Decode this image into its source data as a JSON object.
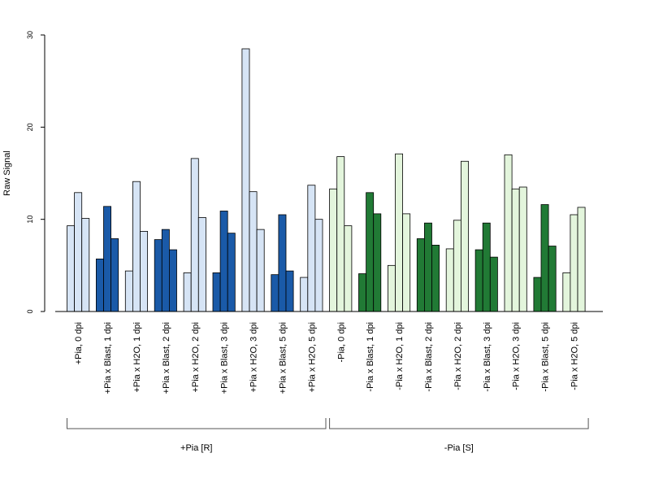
{
  "chart_data": {
    "type": "bar",
    "ylabel": "Raw Signal",
    "xlabel": "",
    "ylim": [
      0,
      30
    ],
    "yticks": [
      0,
      10,
      20,
      30
    ],
    "grid": false,
    "legend": "none",
    "colors": {
      "plus_light": "#d6e4f5",
      "plus_dark": "#1a5aa8",
      "minus_light": "#e3f5dc",
      "minus_dark": "#217a35",
      "stroke": "#000000"
    },
    "categories": [
      {
        "label": "+Pia, 0 dpi",
        "values": [
          9.3,
          12.9,
          10.1
        ],
        "fill": "plus_light"
      },
      {
        "label": "+Pia x Blast, 1 dpi",
        "values": [
          5.7,
          11.4,
          7.9
        ],
        "fill": "plus_dark"
      },
      {
        "label": "+Pia x H2O, 1 dpi",
        "values": [
          4.4,
          14.1,
          8.7
        ],
        "fill": "plus_light"
      },
      {
        "label": "+Pia x Blast, 2 dpi",
        "values": [
          7.8,
          8.9,
          6.7
        ],
        "fill": "plus_dark"
      },
      {
        "label": "+Pia x H2O, 2 dpi",
        "values": [
          4.2,
          16.6,
          10.2
        ],
        "fill": "plus_light"
      },
      {
        "label": "+Pia x Blast, 3 dpi",
        "values": [
          4.2,
          10.9,
          8.5
        ],
        "fill": "plus_dark"
      },
      {
        "label": "+Pia x H2O, 3 dpi",
        "values": [
          28.5,
          13.0,
          8.9
        ],
        "fill": "plus_light"
      },
      {
        "label": "+Pia x Blast, 5 dpi",
        "values": [
          4.0,
          10.5,
          4.4
        ],
        "fill": "plus_dark"
      },
      {
        "label": "+Pia x H2O, 5 dpi",
        "values": [
          3.7,
          13.7,
          10.0
        ],
        "fill": "plus_light"
      },
      {
        "label": "-Pia, 0 dpi",
        "values": [
          13.3,
          16.8,
          9.3
        ],
        "fill": "minus_light"
      },
      {
        "label": "-Pia x Blast, 1 dpi",
        "values": [
          4.1,
          12.9,
          10.6
        ],
        "fill": "minus_dark"
      },
      {
        "label": "-Pia x H2O, 1 dpi",
        "values": [
          5.0,
          17.1,
          10.6
        ],
        "fill": "minus_light"
      },
      {
        "label": "-Pia x Blast, 2 dpi",
        "values": [
          7.9,
          9.6,
          7.2
        ],
        "fill": "minus_dark"
      },
      {
        "label": "-Pia x H2O, 2 dpi",
        "values": [
          6.8,
          9.9,
          16.3
        ],
        "fill": "minus_light"
      },
      {
        "label": "-Pia x Blast, 3 dpi",
        "values": [
          6.7,
          9.6,
          5.9
        ],
        "fill": "minus_dark"
      },
      {
        "label": "-Pia x H2O, 3 dpi",
        "values": [
          17.0,
          13.3,
          13.5
        ],
        "fill": "minus_light"
      },
      {
        "label": "-Pia x Blast, 5 dpi",
        "values": [
          3.7,
          11.6,
          7.1
        ],
        "fill": "minus_dark"
      },
      {
        "label": "-Pia x H2O, 5 dpi",
        "values": [
          4.2,
          10.5,
          11.3
        ],
        "fill": "minus_light"
      }
    ],
    "groups": [
      {
        "label": "+Pia [R]",
        "from": 0,
        "to": 8
      },
      {
        "label": "-Pia [S]",
        "from": 9,
        "to": 17
      }
    ]
  }
}
